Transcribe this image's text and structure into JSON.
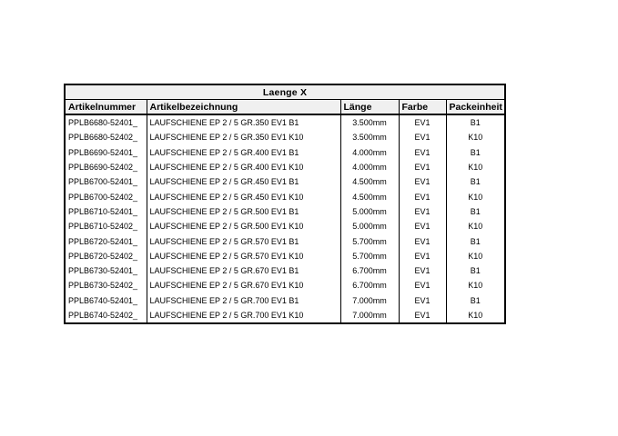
{
  "page": {
    "background": "#ffffff"
  },
  "table": {
    "title": "Laenge X",
    "columns": [
      "Artikelnummer",
      "Artikelbezeichnung",
      "Länge",
      "Farbe",
      "Packeinheit"
    ],
    "rows": [
      [
        "PPLB6680-52401_",
        "LAUFSCHIENE EP 2 / 5 GR.350 EV1 B1",
        "3.500mm",
        "EV1",
        "B1"
      ],
      [
        "PPLB6680-52402_",
        "LAUFSCHIENE EP 2 / 5 GR.350 EV1 K10",
        "3.500mm",
        "EV1",
        "K10"
      ],
      [
        "PPLB6690-52401_",
        "LAUFSCHIENE EP 2 / 5 GR.400 EV1 B1",
        "4.000mm",
        "EV1",
        "B1"
      ],
      [
        "PPLB6690-52402_",
        "LAUFSCHIENE EP 2 / 5 GR.400 EV1 K10",
        "4.000mm",
        "EV1",
        "K10"
      ],
      [
        "PPLB6700-52401_",
        "LAUFSCHIENE EP 2 / 5 GR.450 EV1 B1",
        "4.500mm",
        "EV1",
        "B1"
      ],
      [
        "PPLB6700-52402_",
        "LAUFSCHIENE EP 2 / 5 GR.450 EV1 K10",
        "4.500mm",
        "EV1",
        "K10"
      ],
      [
        "PPLB6710-52401_",
        "LAUFSCHIENE EP 2 / 5 GR.500 EV1 B1",
        "5.000mm",
        "EV1",
        "B1"
      ],
      [
        "PPLB6710-52402_",
        "LAUFSCHIENE EP 2 / 5 GR.500 EV1 K10",
        "5.000mm",
        "EV1",
        "K10"
      ],
      [
        "PPLB6720-52401_",
        "LAUFSCHIENE EP 2 / 5 GR.570 EV1 B1",
        "5.700mm",
        "EV1",
        "B1"
      ],
      [
        "PPLB6720-52402_",
        "LAUFSCHIENE EP 2 / 5 GR.570 EV1 K10",
        "5.700mm",
        "EV1",
        "K10"
      ],
      [
        "PPLB6730-52401_",
        "LAUFSCHIENE EP 2 / 5 GR.670 EV1 B1",
        "6.700mm",
        "EV1",
        "B1"
      ],
      [
        "PPLB6730-52402_",
        "LAUFSCHIENE EP 2 / 5 GR.670 EV1 K10",
        "6.700mm",
        "EV1",
        "K10"
      ],
      [
        "PPLB6740-52401_",
        "LAUFSCHIENE EP 2 / 5 GR.700 EV1 B1",
        "7.000mm",
        "EV1",
        "B1"
      ],
      [
        "PPLB6740-52402_",
        "LAUFSCHIENE EP 2 / 5 GR.700 EV1 K10",
        "7.000mm",
        "EV1",
        "K10"
      ]
    ],
    "colors": {
      "header_bg": "#f0f0f0",
      "border": "#000000",
      "text": "#000000"
    }
  }
}
